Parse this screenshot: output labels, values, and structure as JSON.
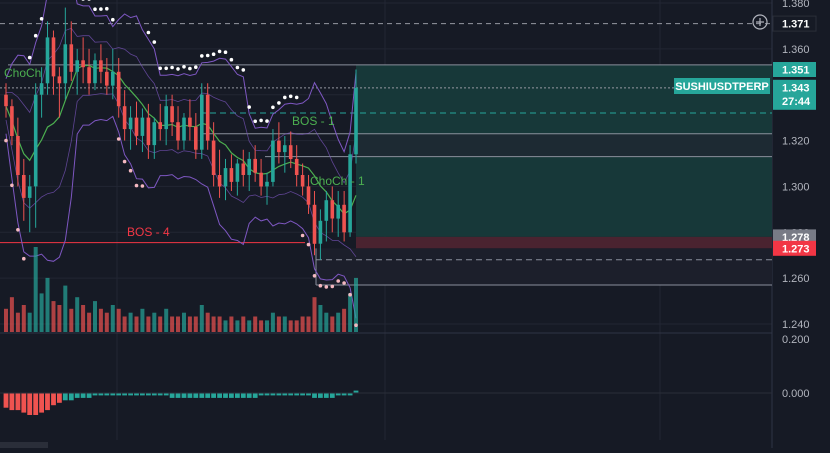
{
  "symbol": "SUSHIUSDTPERP",
  "timer": "27:44",
  "colors": {
    "bg": "#161a25",
    "up": "#26a69a",
    "down": "#ef5350",
    "ma": "#4caf50",
    "band": "#7e57c2",
    "sar_white": "#ffffff",
    "sar_pink": "#f4b8c0",
    "bos_red": "#f23645",
    "bos_green": "#4caf50",
    "zone_green": "#173a3a",
    "zone_red": "#4a2330"
  },
  "price_axis": {
    "ticks": [
      "1.380",
      "1.360",
      "1.340",
      "1.320",
      "1.300",
      "1.280",
      "1.260",
      "1.240"
    ],
    "tick_values": [
      1.38,
      1.36,
      1.34,
      1.32,
      1.3,
      1.28,
      1.26,
      1.24
    ],
    "ylim": [
      1.24,
      1.38
    ]
  },
  "price_labels": [
    {
      "label": "1.371",
      "value": 1.371,
      "style": "alert"
    },
    {
      "label": "1.351",
      "value": 1.351,
      "style": "green"
    },
    {
      "label": "1.343",
      "value": 1.343,
      "style": "current"
    },
    {
      "label": "1.278",
      "value": 1.278,
      "style": "grey"
    },
    {
      "label": "1.273",
      "value": 1.273,
      "style": "red"
    }
  ],
  "annotations": [
    {
      "text": "ChoCh",
      "color": "green"
    },
    {
      "text": "BOS - 1",
      "color": "green"
    },
    {
      "text": "ChoCh - 1",
      "color": "green"
    },
    {
      "text": "BOS - 4",
      "color": "red"
    }
  ],
  "levels": {
    "bos4": 1.2755,
    "choch": 1.353,
    "current": 1.343,
    "alert": 1.371,
    "dashed_mid": 1.332,
    "dashed_low": 1.268,
    "zone_top": 1.353,
    "zone_mid_top": 1.323,
    "zone_mid_bottom": 1.313,
    "zone_red_top": 1.278,
    "zone_red_bottom": 1.273,
    "zone_bottom": 1.257
  },
  "chart_data": {
    "type": "candlestick",
    "ylim": [
      1.24,
      1.38
    ],
    "ohlc": [
      [
        1.34,
        1.345,
        1.33,
        1.335
      ],
      [
        1.335,
        1.338,
        1.318,
        1.322
      ],
      [
        1.322,
        1.33,
        1.3,
        1.305
      ],
      [
        1.305,
        1.312,
        1.285,
        1.295
      ],
      [
        1.295,
        1.305,
        1.28,
        1.3
      ],
      [
        1.3,
        1.345,
        1.282,
        1.34
      ],
      [
        1.34,
        1.352,
        1.33,
        1.345
      ],
      [
        1.345,
        1.372,
        1.34,
        1.365
      ],
      [
        1.365,
        1.368,
        1.34,
        1.348
      ],
      [
        1.348,
        1.352,
        1.33,
        1.345
      ],
      [
        1.345,
        1.378,
        1.338,
        1.362
      ],
      [
        1.362,
        1.372,
        1.346,
        1.35
      ],
      [
        1.35,
        1.36,
        1.34,
        1.355
      ],
      [
        1.355,
        1.365,
        1.345,
        1.352
      ],
      [
        1.352,
        1.36,
        1.34,
        1.345
      ],
      [
        1.345,
        1.358,
        1.342,
        1.355
      ],
      [
        1.355,
        1.362,
        1.345,
        1.35
      ],
      [
        1.35,
        1.356,
        1.34,
        1.344
      ],
      [
        1.344,
        1.36,
        1.338,
        1.35
      ],
      [
        1.35,
        1.356,
        1.33,
        1.335
      ],
      [
        1.335,
        1.342,
        1.32,
        1.325
      ],
      [
        1.325,
        1.335,
        1.316,
        1.33
      ],
      [
        1.33,
        1.337,
        1.318,
        1.322
      ],
      [
        1.322,
        1.334,
        1.315,
        1.33
      ],
      [
        1.33,
        1.336,
        1.312,
        1.318
      ],
      [
        1.318,
        1.33,
        1.312,
        1.328
      ],
      [
        1.328,
        1.336,
        1.32,
        1.325
      ],
      [
        1.325,
        1.34,
        1.318,
        1.335
      ],
      [
        1.335,
        1.34,
        1.322,
        1.328
      ],
      [
        1.328,
        1.335,
        1.316,
        1.32
      ],
      [
        1.32,
        1.332,
        1.316,
        1.33
      ],
      [
        1.33,
        1.338,
        1.32,
        1.326
      ],
      [
        1.326,
        1.332,
        1.312,
        1.316
      ],
      [
        1.316,
        1.345,
        1.312,
        1.34
      ],
      [
        1.34,
        1.345,
        1.316,
        1.32
      ],
      [
        1.32,
        1.328,
        1.3,
        1.305
      ],
      [
        1.305,
        1.316,
        1.295,
        1.3
      ],
      [
        1.3,
        1.312,
        1.294,
        1.308
      ],
      [
        1.308,
        1.314,
        1.298,
        1.302
      ],
      [
        1.302,
        1.312,
        1.296,
        1.31
      ],
      [
        1.31,
        1.316,
        1.3,
        1.305
      ],
      [
        1.305,
        1.315,
        1.298,
        1.312
      ],
      [
        1.312,
        1.318,
        1.302,
        1.306
      ],
      [
        1.306,
        1.312,
        1.296,
        1.3
      ],
      [
        1.3,
        1.306,
        1.292,
        1.302
      ],
      [
        1.302,
        1.325,
        1.3,
        1.32
      ],
      [
        1.32,
        1.328,
        1.31,
        1.315
      ],
      [
        1.315,
        1.322,
        1.306,
        1.318
      ],
      [
        1.318,
        1.324,
        1.308,
        1.312
      ],
      [
        1.312,
        1.318,
        1.3,
        1.305
      ],
      [
        1.305,
        1.31,
        1.296,
        1.3
      ],
      [
        1.3,
        1.305,
        1.288,
        1.292
      ],
      [
        1.292,
        1.298,
        1.27,
        1.275
      ],
      [
        1.275,
        1.29,
        1.268,
        1.285
      ],
      [
        1.285,
        1.298,
        1.276,
        1.294
      ],
      [
        1.294,
        1.3,
        1.28,
        1.286
      ],
      [
        1.286,
        1.298,
        1.278,
        1.292
      ],
      [
        1.292,
        1.298,
        1.276,
        1.28
      ],
      [
        1.28,
        1.318,
        1.278,
        1.314
      ],
      [
        1.314,
        1.351,
        1.31,
        1.343
      ]
    ],
    "volume": [
      6,
      9,
      5,
      7,
      5,
      22,
      10,
      14,
      8,
      7,
      12,
      6,
      9,
      7,
      5,
      8,
      6,
      5,
      7,
      6,
      4,
      5,
      4,
      6,
      4,
      5,
      4,
      6,
      4,
      4,
      5,
      4,
      4,
      7,
      5,
      4,
      4,
      3,
      4,
      3,
      4,
      3,
      4,
      3,
      3,
      5,
      4,
      4,
      3,
      3,
      4,
      4,
      9,
      7,
      5,
      4,
      5,
      6,
      10,
      14
    ],
    "histogram": [
      -6,
      -7,
      -7,
      -8,
      -9,
      -9,
      -8,
      -7,
      -5,
      -4,
      -3,
      -3,
      -2,
      -2,
      -2,
      -1,
      -1,
      -1,
      -1,
      -1,
      -1,
      -1,
      -1,
      -1,
      -1,
      -1,
      -1,
      -1,
      -2,
      -2,
      -2,
      -2,
      -2,
      -2,
      -2,
      -2,
      -2,
      -2,
      -2,
      -2,
      -2,
      -2,
      -2,
      -1,
      -1,
      -1,
      -1,
      -1,
      -1,
      -1,
      -1,
      -1,
      -2,
      -2,
      -2,
      -2,
      -1,
      -1,
      -1,
      1
    ],
    "oscillator_axis": {
      "ticks": [
        "0.200",
        "0.000"
      ],
      "tick_values": [
        0.2,
        0.0
      ]
    },
    "title": "",
    "xlabel": "",
    "ylabel": ""
  }
}
